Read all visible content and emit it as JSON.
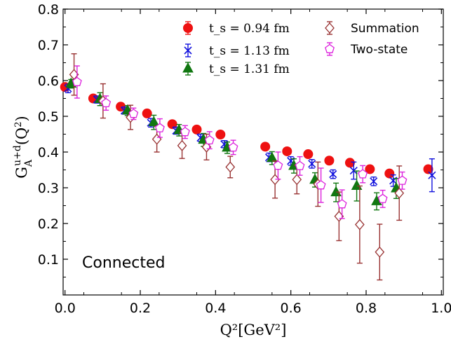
{
  "chart_data": {
    "type": "scatter",
    "title": "",
    "xlabel": "Q²[GeV²]",
    "ylabel": "G_A^{u+d}(Q²)",
    "xlim": [
      0.0,
      1.0
    ],
    "ylim": [
      0.0,
      0.8
    ],
    "xticks": [
      "0.0",
      "0.2",
      "0.4",
      "0.6",
      "0.8",
      "1.0"
    ],
    "yticks": [
      "0.1",
      "0.2",
      "0.3",
      "0.4",
      "0.5",
      "0.6",
      "0.7",
      "0.8"
    ],
    "legend_position": "top-right",
    "annotation": "Connected",
    "series": [
      {
        "name": "t_s = 0.94 fm",
        "color": "#ee1111",
        "marker": "circle",
        "points": [
          {
            "x": 0.0,
            "y": 0.582,
            "err": 0.008
          },
          {
            "x": 0.075,
            "y": 0.55,
            "err": 0.006
          },
          {
            "x": 0.148,
            "y": 0.527,
            "err": 0.006
          },
          {
            "x": 0.218,
            "y": 0.508,
            "err": 0.006
          },
          {
            "x": 0.285,
            "y": 0.478,
            "err": 0.006
          },
          {
            "x": 0.35,
            "y": 0.463,
            "err": 0.006
          },
          {
            "x": 0.413,
            "y": 0.449,
            "err": 0.006
          },
          {
            "x": 0.532,
            "y": 0.415,
            "err": 0.006
          },
          {
            "x": 0.59,
            "y": 0.402,
            "err": 0.006
          },
          {
            "x": 0.646,
            "y": 0.394,
            "err": 0.006
          },
          {
            "x": 0.702,
            "y": 0.376,
            "err": 0.006
          },
          {
            "x": 0.757,
            "y": 0.37,
            "err": 0.006
          },
          {
            "x": 0.81,
            "y": 0.352,
            "err": 0.006
          },
          {
            "x": 0.862,
            "y": 0.34,
            "err": 0.006
          },
          {
            "x": 0.965,
            "y": 0.352,
            "err": 0.01
          }
        ]
      },
      {
        "name": "t_s = 1.13 fm",
        "color": "#1111dd",
        "marker": "x-bar",
        "points": [
          {
            "x": 0.008,
            "y": 0.578,
            "err": 0.012
          },
          {
            "x": 0.085,
            "y": 0.547,
            "err": 0.01
          },
          {
            "x": 0.158,
            "y": 0.516,
            "err": 0.01
          },
          {
            "x": 0.228,
            "y": 0.482,
            "err": 0.012
          },
          {
            "x": 0.295,
            "y": 0.46,
            "err": 0.01
          },
          {
            "x": 0.36,
            "y": 0.44,
            "err": 0.01
          },
          {
            "x": 0.423,
            "y": 0.422,
            "err": 0.01
          },
          {
            "x": 0.542,
            "y": 0.385,
            "err": 0.012
          },
          {
            "x": 0.6,
            "y": 0.375,
            "err": 0.012
          },
          {
            "x": 0.656,
            "y": 0.367,
            "err": 0.012
          },
          {
            "x": 0.712,
            "y": 0.338,
            "err": 0.012
          },
          {
            "x": 0.767,
            "y": 0.348,
            "err": 0.024
          },
          {
            "x": 0.82,
            "y": 0.318,
            "err": 0.012
          },
          {
            "x": 0.872,
            "y": 0.32,
            "err": 0.016
          },
          {
            "x": 0.975,
            "y": 0.335,
            "err": 0.046
          }
        ]
      },
      {
        "name": "t_s = 1.31 fm",
        "color": "#117711",
        "marker": "triangle",
        "points": [
          {
            "x": 0.016,
            "y": 0.591,
            "err": 0.012
          },
          {
            "x": 0.093,
            "y": 0.548,
            "err": 0.018
          },
          {
            "x": 0.166,
            "y": 0.516,
            "err": 0.014
          },
          {
            "x": 0.236,
            "y": 0.483,
            "err": 0.02
          },
          {
            "x": 0.303,
            "y": 0.461,
            "err": 0.016
          },
          {
            "x": 0.368,
            "y": 0.434,
            "err": 0.018
          },
          {
            "x": 0.431,
            "y": 0.412,
            "err": 0.016
          },
          {
            "x": 0.55,
            "y": 0.383,
            "err": 0.018
          },
          {
            "x": 0.608,
            "y": 0.361,
            "err": 0.02
          },
          {
            "x": 0.664,
            "y": 0.322,
            "err": 0.02
          },
          {
            "x": 0.72,
            "y": 0.287,
            "err": 0.026
          },
          {
            "x": 0.775,
            "y": 0.305,
            "err": 0.042
          },
          {
            "x": 0.828,
            "y": 0.262,
            "err": 0.024
          },
          {
            "x": 0.88,
            "y": 0.298,
            "err": 0.028
          }
        ]
      },
      {
        "name": "Summation",
        "color": "#993333",
        "marker": "diamond-open",
        "points": [
          {
            "x": 0.024,
            "y": 0.617,
            "err": 0.058
          },
          {
            "x": 0.101,
            "y": 0.543,
            "err": 0.048
          },
          {
            "x": 0.174,
            "y": 0.497,
            "err": 0.034
          },
          {
            "x": 0.244,
            "y": 0.436,
            "err": 0.036
          },
          {
            "x": 0.311,
            "y": 0.418,
            "err": 0.036
          },
          {
            "x": 0.376,
            "y": 0.414,
            "err": 0.036
          },
          {
            "x": 0.439,
            "y": 0.358,
            "err": 0.03
          },
          {
            "x": 0.558,
            "y": 0.323,
            "err": 0.052
          },
          {
            "x": 0.616,
            "y": 0.323,
            "err": 0.04
          },
          {
            "x": 0.672,
            "y": 0.31,
            "err": 0.062
          },
          {
            "x": 0.728,
            "y": 0.22,
            "err": 0.068
          },
          {
            "x": 0.783,
            "y": 0.197,
            "err": 0.108
          },
          {
            "x": 0.836,
            "y": 0.12,
            "err": 0.078
          },
          {
            "x": 0.888,
            "y": 0.285,
            "err": 0.076
          }
        ]
      },
      {
        "name": "Two-state",
        "color": "#dd22dd",
        "marker": "pentagon-open",
        "points": [
          {
            "x": 0.032,
            "y": 0.596,
            "err": 0.045
          },
          {
            "x": 0.109,
            "y": 0.537,
            "err": 0.02
          },
          {
            "x": 0.182,
            "y": 0.507,
            "err": 0.016
          },
          {
            "x": 0.252,
            "y": 0.467,
            "err": 0.026
          },
          {
            "x": 0.319,
            "y": 0.456,
            "err": 0.018
          },
          {
            "x": 0.384,
            "y": 0.433,
            "err": 0.024
          },
          {
            "x": 0.447,
            "y": 0.413,
            "err": 0.02
          },
          {
            "x": 0.566,
            "y": 0.362,
            "err": 0.038
          },
          {
            "x": 0.624,
            "y": 0.361,
            "err": 0.026
          },
          {
            "x": 0.68,
            "y": 0.307,
            "err": 0.048
          },
          {
            "x": 0.736,
            "y": 0.254,
            "err": 0.04
          },
          {
            "x": 0.791,
            "y": 0.338,
            "err": 0.024
          },
          {
            "x": 0.844,
            "y": 0.269,
            "err": 0.024
          },
          {
            "x": 0.896,
            "y": 0.32,
            "err": 0.024
          }
        ]
      }
    ]
  }
}
